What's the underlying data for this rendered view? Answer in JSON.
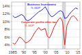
{
  "chart_data": {
    "type": "line",
    "x": [
      1985,
      1986,
      1987,
      1988,
      1989,
      1990,
      1991,
      1992,
      1993,
      1994,
      1995,
      1996,
      1997,
      1998,
      1999,
      2000,
      2001,
      2002,
      2003,
      2004,
      2005,
      2006,
      2007,
      2008,
      2009,
      2010,
      2011,
      2012,
      2013,
      2014,
      2015
    ],
    "series": [
      {
        "color": "#2222dd",
        "values": [
          11.5,
          11.0,
          11.2,
          11.5,
          11.8,
          11.5,
          10.5,
          10.2,
          10.5,
          11.0,
          11.5,
          12.0,
          12.5,
          12.8,
          13.2,
          13.8,
          12.8,
          11.8,
          11.2,
          11.5,
          12.0,
          12.5,
          12.8,
          12.5,
          10.8,
          11.0,
          11.8,
          12.5,
          13.0,
          13.5,
          13.2
        ]
      },
      {
        "color": "#dd2222",
        "values": [
          4.5,
          4.2,
          5.0,
          6.0,
          5.8,
          5.2,
          4.5,
          4.8,
          5.2,
          6.0,
          7.0,
          7.8,
          8.5,
          7.8,
          8.0,
          8.2,
          6.2,
          5.8,
          7.0,
          8.5,
          9.5,
          10.5,
          11.0,
          10.0,
          4.0,
          9.0,
          10.2,
          11.2,
          11.5,
          11.0,
          10.2
        ]
      }
    ],
    "recessions": [
      [
        1990.5,
        1991.25
      ],
      [
        2001.0,
        2001.75
      ],
      [
        2007.75,
        2009.5
      ]
    ],
    "annotations": [
      {
        "text": "Business Investment",
        "color": "#2222dd"
      },
      {
        "text": "% GDP",
        "color": "#2222dd"
      },
      {
        "text": "Corporate profits after tax",
        "color": "#dd2222"
      },
      {
        "text": "% GDP",
        "color": "#dd2222"
      }
    ],
    "xlim": [
      1984.5,
      2016
    ],
    "xticks": [
      1985,
      {
        "value": 1990,
        "label": "'90"
      },
      {
        "value": 1995,
        "label": "'95"
      },
      {
        "value": 2000,
        "label": "'00"
      },
      {
        "value": 2005,
        "label": "'05"
      },
      {
        "value": 2010,
        "label": "'10"
      },
      {
        "value": 2015,
        "label": "'15"
      }
    ],
    "ylim": [
      3,
      15
    ],
    "yticks": [
      {
        "value": 4,
        "label": "4%"
      },
      {
        "value": 6,
        "label": "6%"
      },
      {
        "value": 8,
        "label": "8%"
      },
      {
        "value": 10,
        "label": "10%"
      },
      {
        "value": 12,
        "label": "12%"
      },
      {
        "value": 14,
        "label": "14%"
      }
    ],
    "grid": true
  }
}
